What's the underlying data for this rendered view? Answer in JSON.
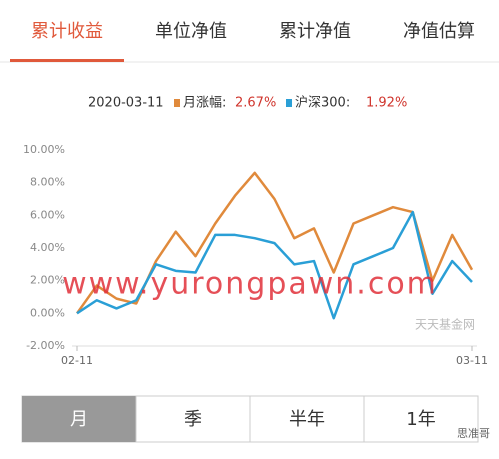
{
  "tabs": [
    "累计收益",
    "单位净值",
    "累计净值",
    "净值估算"
  ],
  "legend": {
    "date": "2020-03-11",
    "fund_label": "月涨幅:",
    "fund_value": "2.67%",
    "index_label": "沪深300:",
    "index_value": "1.92%"
  },
  "chart_data": {
    "type": "line",
    "categories": [
      "02-11",
      null,
      null,
      null,
      null,
      null,
      null,
      null,
      null,
      null,
      null,
      null,
      null,
      null,
      null,
      null,
      null,
      null,
      null,
      null,
      "03-11"
    ],
    "series": [
      {
        "name": "月涨幅",
        "color": "#e08a3c",
        "values": [
          0.0,
          1.7,
          0.9,
          0.6,
          3.2,
          5.0,
          3.5,
          5.5,
          7.2,
          8.6,
          7.0,
          4.6,
          5.2,
          2.5,
          5.5,
          6.0,
          6.5,
          6.2,
          2.0,
          4.8,
          2.67
        ]
      },
      {
        "name": "沪深300",
        "color": "#2a9fd6",
        "values": [
          0.0,
          0.8,
          0.3,
          0.8,
          3.0,
          2.6,
          2.5,
          4.8,
          4.8,
          4.6,
          4.3,
          3.0,
          3.2,
          -0.3,
          3.0,
          3.5,
          4.0,
          6.2,
          1.2,
          3.2,
          1.92
        ]
      }
    ],
    "ylim": [
      -2,
      10
    ],
    "yticks": [
      {
        "value": 10,
        "label": "10.00%"
      },
      {
        "value": 8,
        "label": "8.00%"
      },
      {
        "value": 6,
        "label": "6.00%"
      },
      {
        "value": 4,
        "label": "4.00%"
      },
      {
        "value": 2,
        "label": "2.00%"
      },
      {
        "value": 0,
        "label": "0.00%"
      },
      {
        "value": -2,
        "label": "-2.00%"
      }
    ],
    "grid": false
  },
  "periods": [
    "月",
    "季",
    "半年",
    "1年"
  ],
  "watermarks": {
    "overlay": "www.yurongpawn.com",
    "source": "天天基金网",
    "account": "思准哥"
  }
}
